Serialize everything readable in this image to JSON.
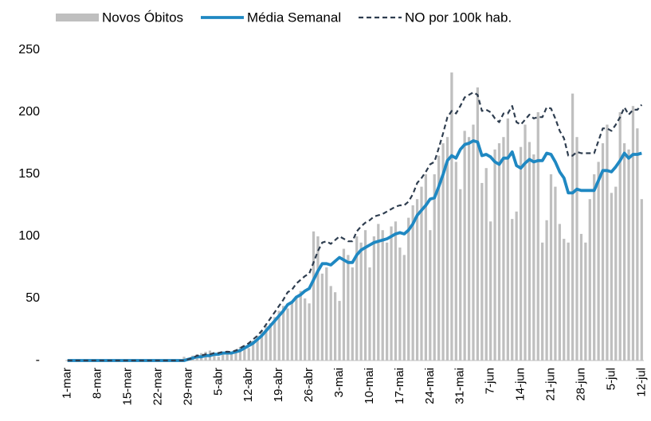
{
  "chart_data": {
    "type": "combo",
    "categories": [
      "1-mar",
      null,
      null,
      null,
      null,
      null,
      null,
      "8-mar",
      null,
      null,
      null,
      null,
      null,
      null,
      "15-mar",
      null,
      null,
      null,
      null,
      null,
      null,
      "22-mar",
      null,
      null,
      null,
      null,
      null,
      null,
      "29-mar",
      null,
      null,
      null,
      null,
      null,
      null,
      "5-abr",
      null,
      null,
      null,
      null,
      null,
      null,
      "12-abr",
      null,
      null,
      null,
      null,
      null,
      null,
      "19-abr",
      null,
      null,
      null,
      null,
      null,
      null,
      "26-abr",
      null,
      null,
      null,
      null,
      null,
      null,
      "3-mai",
      null,
      null,
      null,
      null,
      null,
      null,
      "10-mai",
      null,
      null,
      null,
      null,
      null,
      null,
      "17-mai",
      null,
      null,
      null,
      null,
      null,
      null,
      "24-mai",
      null,
      null,
      null,
      null,
      null,
      null,
      "31-mai",
      null,
      null,
      null,
      null,
      null,
      null,
      "7-jun",
      null,
      null,
      null,
      null,
      null,
      null,
      "14-jun",
      null,
      null,
      null,
      null,
      null,
      null,
      "21-jun",
      null,
      null,
      null,
      null,
      null,
      null,
      "28-jun",
      null,
      null,
      null,
      null,
      null,
      null,
      "5-jul",
      null,
      null,
      null,
      null,
      null,
      null,
      "12-jul"
    ],
    "series": [
      {
        "name": "Novos Óbitos",
        "type": "bar",
        "color": "#bfbfbf",
        "values": [
          0,
          0,
          0,
          0,
          0,
          0,
          0,
          0,
          0,
          0,
          0,
          0,
          0,
          0,
          0,
          0,
          0,
          0,
          0,
          0,
          0,
          0,
          0,
          0,
          0,
          0,
          1,
          3,
          2,
          4,
          5,
          6,
          7,
          8,
          4,
          3,
          5,
          8,
          7,
          9,
          11,
          12,
          10,
          16,
          20,
          24,
          28,
          30,
          35,
          40,
          44,
          42,
          48,
          52,
          56,
          50,
          46,
          104,
          100,
          70,
          75,
          60,
          55,
          48,
          90,
          85,
          75,
          100,
          95,
          105,
          75,
          100,
          110,
          105,
          95,
          108,
          112,
          91,
          85,
          115,
          125,
          130,
          140,
          150,
          105,
          150,
          165,
          175,
          180,
          232,
          160,
          138,
          185,
          180,
          190,
          220,
          143,
          155,
          112,
          170,
          175,
          180,
          195,
          114,
          120,
          172,
          190,
          176,
          166,
          200,
          95,
          113,
          150,
          140,
          110,
          98,
          95,
          215,
          180,
          102,
          95,
          130,
          150,
          160,
          175,
          190,
          135,
          140,
          200,
          175,
          170,
          205,
          187,
          130
        ]
      },
      {
        "name": "Média Semanal",
        "type": "line",
        "color": "#1f88c2",
        "values": [
          0,
          0,
          0,
          0,
          0,
          0,
          0,
          0,
          0,
          0,
          0,
          0,
          0,
          0,
          0,
          0,
          0,
          0,
          0,
          0,
          0,
          0,
          0,
          0,
          0,
          0,
          0,
          0,
          1,
          2,
          3,
          3,
          4,
          4,
          5,
          5,
          6,
          6,
          6,
          7,
          8,
          10,
          12,
          14,
          17,
          20,
          24,
          28,
          32,
          36,
          40,
          45,
          47,
          51,
          53,
          56,
          58,
          65,
          72,
          78,
          78,
          77,
          80,
          83,
          81,
          79,
          79,
          85,
          89,
          91,
          93,
          95,
          96,
          97,
          98,
          100,
          102,
          103,
          102,
          105,
          110,
          117,
          121,
          125,
          130,
          131,
          140,
          150,
          161,
          165,
          163,
          170,
          174,
          175,
          177,
          176,
          165,
          166,
          164,
          160,
          158,
          163,
          163,
          168,
          157,
          155,
          159,
          162,
          160,
          161,
          161,
          167,
          166,
          160,
          152,
          147,
          135,
          135,
          138,
          137,
          137,
          137,
          137,
          145,
          153,
          153,
          152,
          156,
          161,
          167,
          163,
          166,
          166,
          167
        ]
      },
      {
        "name": "NO por 100k hab.",
        "type": "line",
        "dash": true,
        "color": "#2e3d4f",
        "values": [
          0,
          0,
          0,
          0,
          0,
          0,
          0,
          0,
          0,
          0,
          0,
          0,
          0,
          0,
          0,
          0,
          0,
          0,
          0,
          0,
          0,
          0,
          0,
          0,
          0,
          0,
          0,
          0,
          1,
          2,
          4,
          4,
          5,
          5,
          6,
          6,
          7,
          7,
          7,
          8,
          10,
          12,
          14,
          17,
          20,
          24,
          29,
          34,
          39,
          44,
          49,
          55,
          57,
          62,
          65,
          68,
          70,
          79,
          88,
          95,
          96,
          94,
          97,
          100,
          98,
          96,
          96,
          104,
          108,
          111,
          113,
          116,
          117,
          118,
          120,
          122,
          124,
          125,
          125,
          128,
          134,
          143,
          147,
          152,
          158,
          160,
          171,
          183,
          196,
          201,
          199,
          205,
          212,
          214,
          216,
          214,
          201,
          202,
          200,
          195,
          192,
          199,
          199,
          205,
          192,
          190,
          194,
          198,
          195,
          196,
          196,
          204,
          203,
          195,
          185,
          179,
          165,
          165,
          168,
          167,
          167,
          167,
          167,
          177,
          187,
          187,
          185,
          190,
          196,
          204,
          198,
          202,
          202,
          206
        ]
      }
    ],
    "ylim": [
      0,
      250
    ],
    "yticks": [
      {
        "value": 0,
        "label": "-"
      },
      50,
      100,
      150,
      200,
      250
    ],
    "grid": false,
    "legend": "top"
  }
}
